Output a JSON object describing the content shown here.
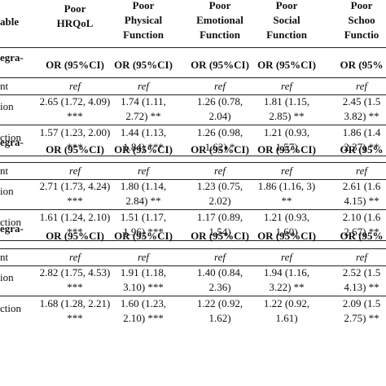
{
  "header": {
    "variable_label": "able",
    "columns": [
      [
        "Poor",
        "HRQoL"
      ],
      [
        "Poor",
        "Physical",
        "Function"
      ],
      [
        "Poor",
        "Emotional",
        "Function"
      ],
      [
        "Poor",
        "Social",
        "Function"
      ],
      [
        "Poor",
        "Schoo",
        "Functio"
      ]
    ]
  },
  "sections": [
    {
      "group_label": "egra-",
      "ci_header": [
        "OR (95%CI)",
        "OR (95%CI)",
        "OR (95%CI)",
        "OR (95%CI)",
        "OR (95%"
      ],
      "rows": [
        {
          "label": "nt",
          "cells": [
            [
              "ref"
            ],
            [
              "ref"
            ],
            [
              "ref"
            ],
            [
              "ref"
            ],
            [
              "ref"
            ]
          ]
        },
        {
          "label": "ion",
          "cells": [
            [
              "2.65 (1.72, 4.09)",
              "***"
            ],
            [
              "1.74 (1.11,",
              "2.72) **"
            ],
            [
              "1.26 (0.78,",
              "2.04)"
            ],
            [
              "1.81 (1.15,",
              "2.85) **"
            ],
            [
              "2.45 (1.5",
              "3.82) **"
            ]
          ]
        },
        {
          "label": "ction",
          "cells": [
            [
              "1.57 (1.23, 2.00)",
              "***"
            ],
            [
              "1.44 (1.13,",
              "1.84) ***"
            ],
            [
              "1.26 (0.98,",
              "1.62) *"
            ],
            [
              "1.21 (0.93,",
              "1.57)"
            ],
            [
              "1.86 (1.4",
              "2.37) **"
            ]
          ]
        }
      ]
    },
    {
      "group_label": "egra-",
      "ci_header": [
        "OR (95%CI)",
        "OR (95%CI)",
        "OR (95%CI)",
        "OR (95%CI)",
        "OR (95%"
      ],
      "rows": [
        {
          "label": "nt",
          "cells": [
            [
              "ref"
            ],
            [
              "ref"
            ],
            [
              "ref"
            ],
            [
              "ref"
            ],
            [
              "ref"
            ]
          ]
        },
        {
          "label": "ion",
          "cells": [
            [
              "2.71 (1.73, 4.24)",
              "***"
            ],
            [
              "1.80 (1.14,",
              "2.84) **"
            ],
            [
              "1.23 (0.75,",
              "2.02)"
            ],
            [
              "1.86 (1.16, 3)",
              "**"
            ],
            [
              "2.61 (1.6",
              "4.15) **"
            ]
          ]
        },
        {
          "label": "ction",
          "cells": [
            [
              "1.61 (1.24, 2.10)",
              "***"
            ],
            [
              "1.51 (1.17,",
              "1.96) ***"
            ],
            [
              "1.17 (0.89,",
              "1.54)"
            ],
            [
              "1.21 (0.93,",
              "1.60)"
            ],
            [
              "2.10 (1.6",
              "2.67) **"
            ]
          ]
        }
      ]
    },
    {
      "group_label": "egra-",
      "ci_header": [
        "OR (95%CI)",
        "OR (95%CI)",
        "OR (95%CI)",
        "OR (95%CI)",
        "OR (95%"
      ],
      "rows": [
        {
          "label": "nt",
          "cells": [
            [
              "ref"
            ],
            [
              "ref"
            ],
            [
              "ref"
            ],
            [
              "ref"
            ],
            [
              "ref"
            ]
          ]
        },
        {
          "label": "ion",
          "cells": [
            [
              "2.82 (1.75, 4.53)",
              "***"
            ],
            [
              "1.91 (1.18,",
              "3.10) ***"
            ],
            [
              "1.40 (0.84,",
              "2.36)"
            ],
            [
              "1.94 (1.16,",
              "3.22) **"
            ],
            [
              "2.52 (1.5",
              "4.13) **"
            ]
          ]
        },
        {
          "label": "ction",
          "cells": [
            [
              "1.68 (1.28, 2.21)",
              "***"
            ],
            [
              "1.60 (1.23,",
              "2.10) ***"
            ],
            [
              "1.22 (0.92,",
              "1.62)"
            ],
            [
              "1.22 (0.92,",
              "1.61)"
            ],
            [
              "2.09 (1.5",
              "2.75) **"
            ]
          ]
        }
      ]
    }
  ]
}
